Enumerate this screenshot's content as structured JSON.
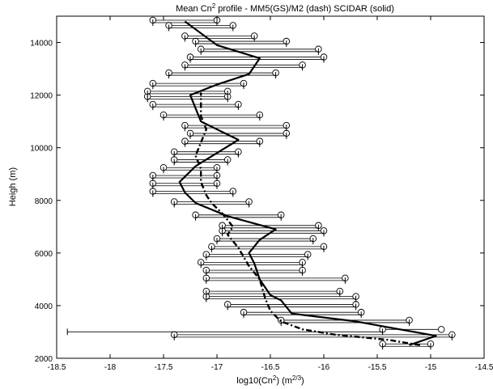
{
  "chart_data": {
    "type": "line",
    "title": {
      "prefix": "Mean Cn",
      "sup": "2",
      "suffix": " profile - MM5(GS)/M2 (dash) SCIDAR (solid)"
    },
    "xlabel": {
      "prefix": "log10(Cn",
      "sup1": "2",
      "mid": ") (m",
      "sup2": "2/3",
      "suffix": ")"
    },
    "ylabel": "Heigh (m)",
    "xlim": [
      -18.5,
      -14.5
    ],
    "ylim": [
      2000,
      15000
    ],
    "x_ticks": [
      -18.5,
      -18,
      -17.5,
      -17,
      -16.5,
      -16,
      -15.5,
      -15,
      -14.5
    ],
    "x_tick_labels": [
      "-18.5",
      "-18",
      "-17.5",
      "-17",
      "-16.5",
      "-16",
      "-15.5",
      "-15",
      "-14.5"
    ],
    "y_ticks": [
      2000,
      4000,
      6000,
      8000,
      10000,
      12000,
      14000
    ],
    "y_tick_labels": [
      "2000",
      "4000",
      "6000",
      "8000",
      "10000",
      "12000",
      "14000"
    ],
    "grid": false,
    "series": [
      {
        "name": "SCIDAR",
        "style": "solid",
        "color": "#000000",
        "points": [
          [
            -15.2,
            2500
          ],
          [
            -14.95,
            2850
          ],
          [
            -15.7,
            3400
          ],
          [
            -16.3,
            3700
          ],
          [
            -16.4,
            4200
          ],
          [
            -16.5,
            4400
          ],
          [
            -16.6,
            5000
          ],
          [
            -16.65,
            5600
          ],
          [
            -16.7,
            6000
          ],
          [
            -16.6,
            6500
          ],
          [
            -16.45,
            6900
          ],
          [
            -16.9,
            7400
          ],
          [
            -17.2,
            7900
          ],
          [
            -17.3,
            8300
          ],
          [
            -17.35,
            8700
          ],
          [
            -17.2,
            9300
          ],
          [
            -17.0,
            9800
          ],
          [
            -16.8,
            10300
          ],
          [
            -17.15,
            11000
          ],
          [
            -17.2,
            11500
          ],
          [
            -17.25,
            12000
          ],
          [
            -17.0,
            12400
          ],
          [
            -16.7,
            12800
          ],
          [
            -16.6,
            13400
          ],
          [
            -17.0,
            13900
          ],
          [
            -17.3,
            14800
          ]
        ]
      },
      {
        "name": "MM5(GS)/M2",
        "style": "dash",
        "color": "#000000",
        "points": [
          [
            -15.1,
            2500
          ],
          [
            -15.4,
            2700
          ],
          [
            -15.9,
            2900
          ],
          [
            -16.2,
            3100
          ],
          [
            -16.4,
            3400
          ],
          [
            -16.5,
            3800
          ],
          [
            -16.55,
            4300
          ],
          [
            -16.6,
            5000
          ],
          [
            -16.7,
            5500
          ],
          [
            -16.8,
            6200
          ],
          [
            -16.9,
            6700
          ],
          [
            -16.85,
            7000
          ],
          [
            -16.95,
            7500
          ],
          [
            -17.05,
            7900
          ],
          [
            -17.1,
            8200
          ],
          [
            -17.15,
            8700
          ],
          [
            -17.15,
            9200
          ],
          [
            -17.2,
            9700
          ],
          [
            -17.15,
            10200
          ],
          [
            -17.1,
            10700
          ],
          [
            -17.15,
            11200
          ],
          [
            -17.15,
            11700
          ],
          [
            -17.15,
            12100
          ]
        ]
      }
    ],
    "scidar_ranges": [
      [
        2500,
        -15.45,
        -15.0
      ],
      [
        2850,
        -17.4,
        -14.8
      ],
      [
        3050,
        -15.45,
        -14.9
      ],
      [
        3400,
        -16.4,
        -15.2
      ],
      [
        3700,
        -16.75,
        -15.65
      ],
      [
        4000,
        -16.9,
        -15.7
      ],
      [
        4300,
        -17.1,
        -15.7
      ],
      [
        4500,
        -17.1,
        -15.85
      ],
      [
        5000,
        -17.1,
        -15.8
      ],
      [
        5300,
        -17.1,
        -16.2
      ],
      [
        5600,
        -17.15,
        -16.2
      ],
      [
        5900,
        -17.1,
        -16.15
      ],
      [
        6200,
        -17.05,
        -16.0
      ],
      [
        6500,
        -17.0,
        -16.1
      ],
      [
        6800,
        -16.95,
        -16.0
      ],
      [
        7000,
        -16.95,
        -16.05
      ],
      [
        7400,
        -17.2,
        -16.4
      ],
      [
        7900,
        -17.4,
        -16.7
      ],
      [
        8300,
        -17.6,
        -16.85
      ],
      [
        8600,
        -17.6,
        -17.0
      ],
      [
        8900,
        -17.6,
        -17.0
      ],
      [
        9200,
        -17.5,
        -17.0
      ],
      [
        9500,
        -17.4,
        -16.9
      ],
      [
        9800,
        -17.4,
        -16.8
      ],
      [
        10200,
        -17.3,
        -16.6
      ],
      [
        10500,
        -17.25,
        -16.35
      ],
      [
        10800,
        -17.3,
        -16.35
      ],
      [
        11200,
        -17.5,
        -16.6
      ],
      [
        11600,
        -17.6,
        -16.8
      ],
      [
        11900,
        -17.65,
        -16.9
      ],
      [
        12100,
        -17.65,
        -16.9
      ],
      [
        12400,
        -17.6,
        -16.75
      ],
      [
        12800,
        -17.45,
        -16.45
      ],
      [
        13100,
        -17.3,
        -16.2
      ],
      [
        13400,
        -17.25,
        -16.0
      ],
      [
        13700,
        -17.15,
        -16.05
      ],
      [
        14000,
        -17.2,
        -16.35
      ],
      [
        14200,
        -17.3,
        -16.65
      ],
      [
        14600,
        -17.45,
        -16.85
      ],
      [
        14800,
        -17.6,
        -17.0
      ]
    ],
    "model_ranges": [
      [
        2500,
        -15.45,
        -15.0
      ],
      [
        2850,
        -17.4,
        -14.8
      ],
      [
        3050,
        -18.4,
        -15.45
      ],
      [
        3400,
        -16.4,
        -15.2
      ],
      [
        3700,
        -16.75,
        -15.65
      ],
      [
        4000,
        -16.9,
        -15.7
      ],
      [
        4300,
        -17.1,
        -15.7
      ],
      [
        4500,
        -17.1,
        -15.85
      ],
      [
        5000,
        -17.1,
        -15.8
      ],
      [
        5300,
        -17.1,
        -16.2
      ],
      [
        5600,
        -17.15,
        -16.2
      ],
      [
        5900,
        -17.1,
        -16.15
      ],
      [
        6200,
        -17.05,
        -16.0
      ],
      [
        6500,
        -17.0,
        -16.1
      ],
      [
        6800,
        -16.95,
        -16.0
      ],
      [
        7000,
        -16.95,
        -16.05
      ],
      [
        7400,
        -17.2,
        -16.4
      ],
      [
        7900,
        -17.4,
        -16.7
      ],
      [
        8300,
        -17.6,
        -16.85
      ],
      [
        8600,
        -17.6,
        -17.0
      ],
      [
        8900,
        -17.6,
        -17.0
      ],
      [
        9200,
        -17.5,
        -17.0
      ],
      [
        9500,
        -17.4,
        -16.9
      ],
      [
        9800,
        -17.4,
        -16.8
      ],
      [
        10200,
        -17.3,
        -16.6
      ],
      [
        10500,
        -17.25,
        -16.35
      ],
      [
        10800,
        -17.3,
        -16.35
      ],
      [
        11200,
        -17.5,
        -16.6
      ],
      [
        11600,
        -17.6,
        -16.8
      ],
      [
        11900,
        -17.65,
        -16.9
      ],
      [
        12100,
        -17.65,
        -16.9
      ],
      [
        12400,
        -17.6,
        -16.75
      ],
      [
        12800,
        -17.45,
        -16.45
      ],
      [
        13100,
        -17.3,
        -16.2
      ],
      [
        13400,
        -17.25,
        -16.0
      ],
      [
        13700,
        -17.15,
        -16.05
      ],
      [
        14000,
        -17.2,
        -16.35
      ],
      [
        14200,
        -17.3,
        -16.65
      ],
      [
        14600,
        -17.45,
        -16.85
      ],
      [
        14800,
        -17.6,
        -17.0
      ]
    ]
  }
}
